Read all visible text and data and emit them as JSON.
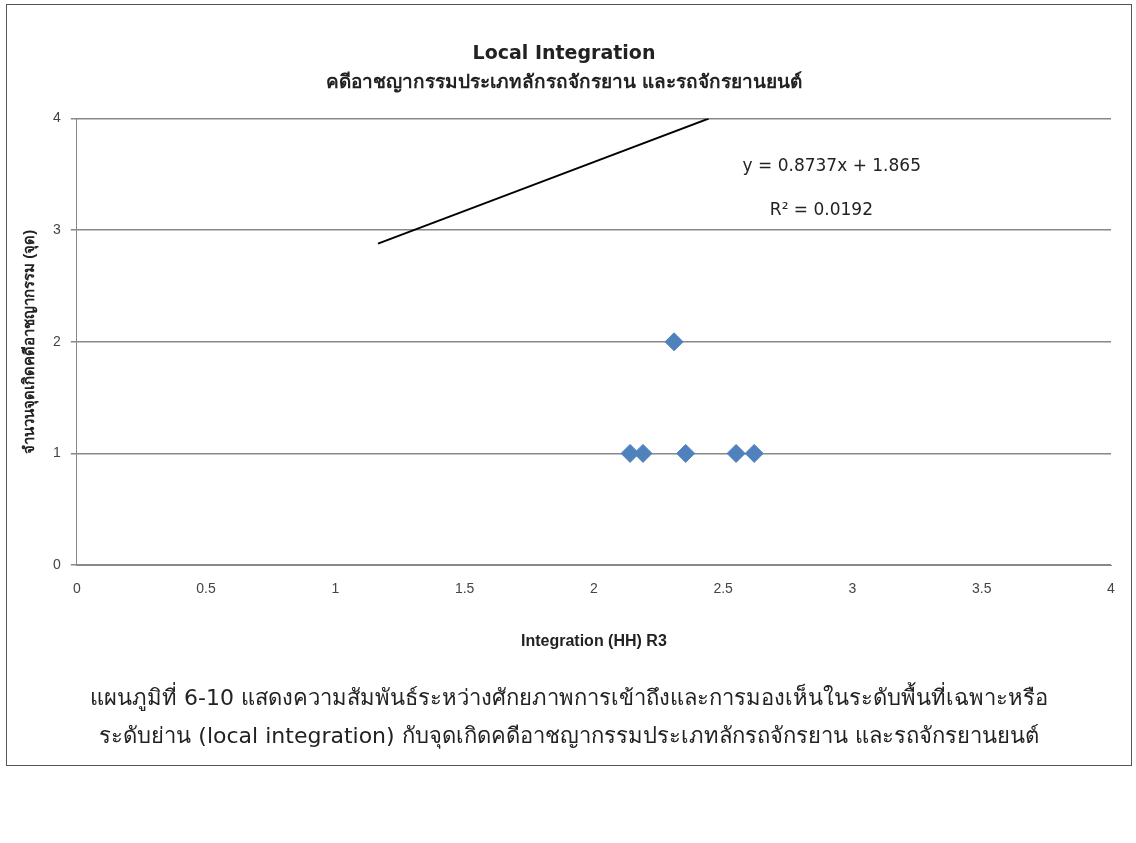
{
  "chart_data": {
    "type": "scatter",
    "title": "Local Integration",
    "subtitle": "คดีอาชญากรรมประเภทลักรถจักรยาน และรถจักรยานยนต์",
    "xlabel": "Integration (HH) R3",
    "ylabel": "จำนวนจุดเกิดคดีอาชญากรรม (จุด)",
    "series": [
      {
        "color": "#4f81bd",
        "marker": "diamond",
        "x": [
          2.14,
          2.19,
          2.31,
          2.355,
          2.55,
          2.62
        ],
        "values": [
          1,
          1,
          2,
          1,
          1,
          1
        ]
      },
      {
        "type": "line",
        "color": "#000000",
        "x": [
          1.165,
          2.444
        ],
        "values": [
          2.88,
          4
        ],
        "marker": "none"
      }
    ],
    "xlim": [
      0,
      4
    ],
    "xticks": [
      0,
      0.5,
      1,
      1.5,
      2,
      2.5,
      3,
      3.5,
      4
    ],
    "ylim": [
      0,
      4
    ],
    "yticks": [
      0,
      1,
      2,
      3,
      4
    ],
    "grid": "y",
    "legend": false,
    "annotations": [
      "y = 0.8737x + 1.865",
      "R² = 0.0192",
      "แผนภูมิที่ 6-10 แสดงความสัมพันธ์ระหว่างศักยภาพการเข้าถึงและการมองเห็นในระดับพื้นที่เฉพาะหรือระดับย่าน (local integration) กับจุดเกิดคดีอาชญากรรมประเภทลักรถจักรยาน และรถจักรยานยนต์"
    ]
  }
}
